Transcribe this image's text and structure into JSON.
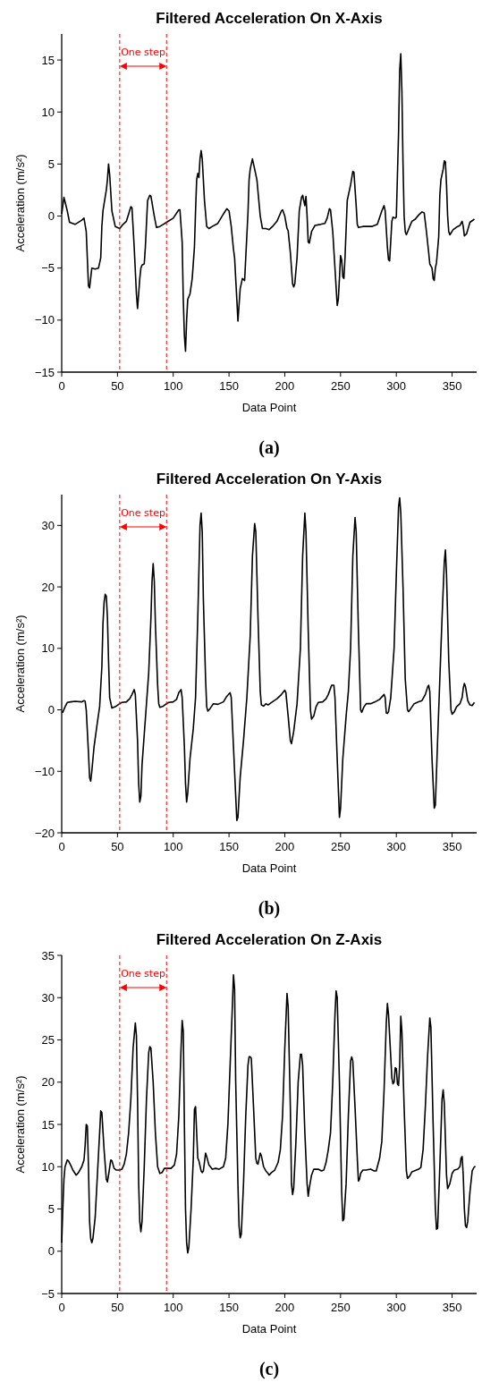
{
  "chart_data": [
    {
      "type": "line",
      "title": "Filtered Acceleration On X-Axis",
      "xlabel": "Data Point",
      "ylabel": "Acceleration (m/s²)",
      "xlim": [
        0,
        372
      ],
      "ylim": [
        -15,
        17.5
      ],
      "xticks": [
        0,
        50,
        100,
        150,
        200,
        250,
        300,
        350
      ],
      "yticks": [
        -15,
        -10,
        -5,
        0,
        5,
        10,
        15
      ],
      "series": [
        {
          "color": "#000000",
          "x": [
            0,
            2,
            5,
            7,
            12,
            18,
            20,
            22,
            24,
            25,
            27,
            30,
            33,
            35,
            36,
            37,
            40,
            41,
            42,
            43,
            45,
            48,
            52,
            55,
            58,
            60,
            62,
            63,
            65,
            67,
            68,
            70,
            71,
            72,
            74,
            75,
            77,
            79,
            80,
            83,
            85,
            88,
            91,
            94,
            100,
            105,
            106,
            108,
            109,
            110,
            111,
            112,
            113,
            115,
            117,
            119,
            120,
            121,
            122,
            123,
            124,
            125,
            126,
            128,
            130,
            132,
            135,
            140,
            145,
            148,
            150,
            152,
            154,
            155,
            157,
            158,
            160,
            162,
            164,
            165,
            167,
            168,
            169,
            171,
            173,
            175,
            178,
            180,
            183,
            186,
            189,
            193,
            197,
            198,
            200,
            202,
            203,
            205,
            207,
            208,
            209,
            211,
            213,
            215,
            216,
            218,
            219,
            220,
            221,
            222,
            224,
            227,
            232,
            236,
            238,
            240,
            241,
            243,
            245,
            247,
            248,
            249,
            250,
            251,
            252,
            253,
            254,
            256,
            259,
            261,
            262,
            264,
            265,
            266,
            270,
            278,
            283,
            287,
            289,
            290,
            292,
            293,
            294,
            296,
            297,
            299,
            300,
            302,
            303,
            304,
            305,
            306,
            307,
            308,
            309,
            312,
            314,
            317,
            320,
            323,
            325,
            327,
            329,
            330,
            332,
            333,
            334,
            335,
            336,
            338,
            339,
            340,
            342,
            343,
            344,
            345,
            346,
            347,
            348,
            351,
            355,
            357,
            358,
            359,
            360,
            361,
            363,
            366,
            370
          ],
          "values": [
            0.2,
            1.8,
            0.5,
            -0.6,
            -0.8,
            -0.4,
            -0.2,
            -1.5,
            -6.7,
            -6.9,
            -5,
            -5.1,
            -5,
            -4,
            -1,
            0.5,
            2.5,
            3.5,
            5,
            4,
            0.5,
            -1,
            -1.2,
            -0.8,
            -0.5,
            0.2,
            0.9,
            0.8,
            -3,
            -7.5,
            -8.9,
            -6,
            -5,
            -4.7,
            -4.6,
            -3,
            1.5,
            2,
            1.9,
            0,
            -1.1,
            -1,
            -0.8,
            -0.6,
            -0.2,
            0.6,
            0.6,
            -2.5,
            -8,
            -11.5,
            -13,
            -10,
            -8,
            -7.5,
            -6,
            -3,
            0.5,
            3.5,
            4.1,
            3.7,
            5.5,
            6.3,
            5.5,
            1.5,
            -1,
            -1.2,
            -1,
            -0.7,
            0.2,
            0.7,
            0.5,
            -1,
            -3.2,
            -4,
            -8,
            -10.1,
            -7,
            -6,
            -6.2,
            -4,
            0.3,
            3.5,
            4.5,
            5.5,
            4.5,
            3.5,
            0,
            -1.2,
            -1.2,
            -1.3,
            -1,
            -0.5,
            0.5,
            0.6,
            0,
            -1.2,
            -1.4,
            -3.5,
            -6.5,
            -6.8,
            -6.5,
            -4,
            0.5,
            1.8,
            2,
            1,
            1.9,
            0,
            -2.5,
            -2.6,
            -1.5,
            -0.9,
            -0.8,
            -0.7,
            -0.2,
            0.7,
            0.6,
            -1.5,
            -5,
            -8.6,
            -8,
            -6,
            -3.8,
            -4.2,
            -5.8,
            -6,
            -4,
            1.5,
            3,
            4.3,
            4.2,
            1,
            -0.8,
            -1.1,
            -1,
            -1,
            -0.8,
            0.5,
            1,
            0.5,
            -3,
            -4.2,
            -4.3,
            -0.5,
            -0.1,
            -0.2,
            -0.1,
            8,
            14,
            15.6,
            12,
            5,
            0,
            -1.5,
            -1.8,
            -1,
            -0.5,
            -0.3,
            0.1,
            0.4,
            0.3,
            -1.5,
            -3.5,
            -4.6,
            -5,
            -6,
            -6.2,
            -5,
            -4.5,
            -2,
            2,
            3.5,
            4.5,
            5.3,
            5.2,
            3,
            0,
            -1.5,
            -1.8,
            -1.3,
            -1,
            -0.9,
            -0.7,
            -0.5,
            -1,
            -1.9,
            -1.7,
            -0.6,
            -0.3
          ]
        }
      ],
      "ref_lines": [
        {
          "axis": "x",
          "value": 52,
          "color": "#ff0000",
          "line_style": "dashed"
        },
        {
          "axis": "x",
          "value": 94,
          "color": "#ff0000",
          "line_style": "dashed"
        }
      ],
      "annotations": [
        "One step",
        "(a)"
      ]
    },
    {
      "type": "line",
      "title": "Filtered Acceleration On Y-Axis",
      "xlabel": "Data Point",
      "ylabel": "Acceleration (m/s²)",
      "xlim": [
        0,
        372
      ],
      "ylim": [
        -20,
        35
      ],
      "xticks": [
        0,
        50,
        100,
        150,
        200,
        250,
        300,
        350
      ],
      "yticks": [
        -20,
        -10,
        0,
        10,
        20,
        30
      ],
      "series": [
        {
          "color": "#000000",
          "x": [
            0,
            1,
            3,
            5,
            8,
            12,
            18,
            20,
            21,
            22,
            24,
            25,
            26,
            27,
            29,
            32,
            34,
            36,
            37,
            38,
            39,
            40,
            41,
            42,
            43,
            45,
            48,
            52,
            54,
            58,
            61,
            63,
            65,
            66,
            68,
            69,
            70,
            71,
            72,
            74,
            76,
            78,
            80,
            81,
            82,
            83,
            84,
            86,
            87,
            88,
            91,
            94,
            96,
            100,
            103,
            105,
            107,
            108,
            110,
            111,
            112,
            113,
            115,
            118,
            120,
            122,
            124,
            125,
            126,
            127,
            129,
            130,
            131,
            133,
            136,
            140,
            145,
            148,
            151,
            152,
            154,
            156,
            157,
            158,
            160,
            163,
            166,
            169,
            171,
            173,
            174,
            176,
            178,
            179,
            181,
            183,
            185,
            188,
            193,
            197,
            200,
            201,
            203,
            205,
            206,
            208,
            211,
            214,
            216,
            218,
            219,
            221,
            223,
            224,
            226,
            228,
            230,
            234,
            237,
            239,
            242,
            244,
            245,
            247,
            249,
            250,
            252,
            255,
            257,
            259,
            261,
            263,
            264,
            266,
            268,
            269,
            271,
            273,
            277,
            281,
            285,
            289,
            290,
            291,
            292,
            293,
            295,
            298,
            300,
            302,
            303,
            304,
            306,
            308,
            310,
            311,
            313,
            316,
            320,
            323,
            326,
            328,
            329,
            330,
            332,
            334,
            335,
            337,
            339,
            341,
            343,
            344,
            345,
            347,
            349,
            350,
            352,
            354,
            357,
            359,
            360,
            361,
            362,
            364,
            366,
            368,
            370
          ],
          "values": [
            -0.3,
            -0.4,
            0.5,
            1.2,
            1.3,
            1.4,
            1.3,
            1.5,
            1.4,
            0,
            -7,
            -11,
            -11.6,
            -10,
            -6,
            -2,
            0.5,
            7,
            14,
            17.5,
            18.8,
            18.5,
            15,
            8,
            2,
            0.3,
            0.5,
            1,
            1.2,
            1.3,
            1.8,
            2.5,
            3.3,
            2.5,
            -5,
            -12,
            -15,
            -14,
            -9,
            -4,
            1,
            6,
            15,
            21,
            23.8,
            21,
            14,
            4,
            1,
            0.4,
            0.6,
            1,
            1.2,
            1.3,
            1.7,
            2.8,
            3.3,
            2,
            -6,
            -12,
            -15,
            -13.5,
            -8,
            -3,
            2,
            15,
            30,
            32,
            29,
            18,
            5,
            0.5,
            -0.2,
            0.2,
            1,
            0.9,
            1.3,
            2.2,
            2.8,
            2,
            -6,
            -14,
            -18,
            -17.5,
            -11,
            -5,
            2,
            12,
            25,
            30.3,
            29,
            15,
            3,
            0.8,
            0.6,
            1,
            0.8,
            1.2,
            1.8,
            2.5,
            3.2,
            2.8,
            -1,
            -5,
            -5.5,
            -3.5,
            1,
            10,
            25,
            32,
            29,
            13,
            0,
            -1.5,
            -1,
            0.5,
            1.2,
            1.3,
            1.8,
            2.5,
            4,
            4,
            2,
            -8,
            -17.5,
            -16,
            -8,
            -1,
            3,
            10,
            25,
            31.3,
            29,
            13,
            0,
            -0.4,
            0.5,
            1,
            1,
            1.3,
            1.7,
            2.5,
            2,
            -0.5,
            -0.6,
            -0.3,
            2,
            10,
            22,
            33,
            34.5,
            32,
            20,
            5,
            0,
            -0.3,
            0.2,
            1,
            1.3,
            1.5,
            2.5,
            3.7,
            4,
            3,
            -8,
            -16,
            -15.5,
            -5,
            5,
            15,
            24,
            26,
            22,
            8,
            0,
            -0.7,
            -0.3,
            0.5,
            1,
            2,
            3.5,
            4.3,
            3.8,
            1.5,
            0.8,
            0.7,
            1.2
          ]
        }
      ],
      "ref_lines": [
        {
          "axis": "x",
          "value": 52,
          "color": "#ff0000",
          "line_style": "dashed"
        },
        {
          "axis": "x",
          "value": 94,
          "color": "#ff0000",
          "line_style": "dashed"
        }
      ],
      "annotations": [
        "One step",
        "(b)"
      ]
    },
    {
      "type": "line",
      "title": "Filtered Acceleration On Z-Axis",
      "xlabel": "Data Point",
      "ylabel": "Acceleration (m/s²)",
      "xlim": [
        0,
        372
      ],
      "ylim": [
        -5,
        35
      ],
      "xticks": [
        0,
        50,
        100,
        150,
        200,
        250,
        300,
        350
      ],
      "yticks": [
        -5,
        0,
        5,
        10,
        15,
        20,
        25,
        30,
        35
      ],
      "series": [
        {
          "color": "#000000",
          "x": [
            0,
            1,
            2,
            3,
            5,
            6,
            8,
            10,
            13,
            15,
            18,
            20,
            21,
            22,
            23,
            24,
            25,
            26,
            27,
            28,
            30,
            32,
            34,
            35,
            36,
            38,
            40,
            41,
            42,
            44,
            45,
            47,
            49,
            52,
            54,
            56,
            58,
            60,
            62,
            64,
            66,
            67,
            68,
            69,
            70,
            71,
            72,
            74,
            76,
            78,
            79,
            80,
            82,
            84,
            86,
            88,
            90,
            92,
            95,
            98,
            101,
            103,
            105,
            107,
            108,
            109,
            110,
            111,
            112,
            113,
            114,
            116,
            118,
            119,
            120,
            121,
            122,
            123,
            125,
            126,
            127,
            129,
            130,
            132,
            135,
            138,
            141,
            145,
            147,
            149,
            151,
            153,
            154,
            155,
            156,
            158,
            159,
            160,
            161,
            163,
            165,
            167,
            168,
            169,
            170,
            172,
            174,
            175,
            176,
            178,
            179,
            181,
            183,
            185,
            186,
            188,
            191,
            194,
            196,
            198,
            200,
            202,
            203,
            205,
            206,
            207,
            208,
            210,
            212,
            214,
            215,
            216,
            218,
            220,
            221,
            222,
            224,
            226,
            230,
            233,
            235,
            237,
            239,
            241,
            243,
            245,
            246,
            247,
            249,
            251,
            252,
            253,
            255,
            257,
            259,
            260,
            261,
            263,
            265,
            266,
            267,
            268,
            270,
            273,
            277,
            280,
            282,
            285,
            287,
            289,
            291,
            292,
            293,
            295,
            296,
            297,
            298,
            299,
            300,
            301,
            302,
            303,
            304,
            305,
            307,
            309,
            310,
            312,
            314,
            318,
            320,
            322,
            324,
            326,
            328,
            330,
            331,
            333,
            335,
            336,
            337,
            339,
            341,
            342,
            343,
            345,
            346,
            348,
            350,
            352,
            355,
            357,
            358,
            359,
            360,
            361,
            362,
            363,
            364,
            366,
            368,
            370,
            371
          ],
          "values": [
            1,
            5,
            8.5,
            10,
            10.8,
            10.7,
            10.2,
            9.6,
            9,
            9.3,
            10,
            10.8,
            12.5,
            15,
            14.8,
            10,
            3.5,
            1.5,
            1,
            1.5,
            4,
            9,
            14,
            16.6,
            16.4,
            12,
            8.5,
            8.2,
            9,
            10.8,
            10.7,
            9.8,
            9.6,
            9.6,
            9.7,
            10.3,
            11.5,
            14,
            18,
            24,
            27,
            25.5,
            18,
            8,
            3.5,
            2.3,
            3.5,
            10,
            18,
            23.5,
            24.2,
            24,
            20,
            14,
            10,
            9.2,
            9.3,
            9.8,
            9.8,
            9.8,
            10.2,
            11.5,
            16,
            24,
            27.3,
            26,
            15,
            5,
            1,
            -0.2,
            0.5,
            5,
            11,
            16.8,
            17.1,
            14,
            11,
            10.7,
            9.5,
            9.3,
            9.5,
            11.6,
            11.2,
            10.2,
            9.7,
            9.8,
            9.7,
            10,
            11,
            15,
            22,
            29,
            32.7,
            31,
            20,
            8,
            3,
            1.6,
            2,
            8,
            16,
            22,
            23,
            23,
            22.8,
            17,
            11,
            10.4,
            10.3,
            11.6,
            11.3,
            10,
            9.5,
            9.2,
            9,
            9.3,
            9.6,
            10.5,
            12,
            16,
            24,
            30.5,
            29,
            17,
            8,
            6.7,
            7.5,
            13,
            20,
            23.3,
            23.3,
            22,
            14,
            8,
            6.5,
            7.5,
            9,
            9.7,
            9.7,
            9.5,
            9.6,
            10.5,
            12,
            14,
            20,
            28,
            30.8,
            30,
            20,
            7,
            3.6,
            3.8,
            8,
            16,
            22.5,
            23,
            22.5,
            17,
            11,
            8.3,
            8.5,
            9.2,
            9.6,
            9.6,
            9.7,
            9.5,
            9.5,
            11,
            13,
            19,
            27,
            29.3,
            28,
            23,
            20.5,
            19.8,
            20,
            21.7,
            21.6,
            19.8,
            19.6,
            22,
            27.8,
            26,
            17,
            9.5,
            8.6,
            8.9,
            9.4,
            9.6,
            9.7,
            9.9,
            12,
            17,
            23,
            27.6,
            26.5,
            15,
            5,
            2.6,
            2.7,
            10,
            18,
            19.1,
            17.5,
            9,
            7.4,
            8,
            9.2,
            9.6,
            9.7,
            10,
            11,
            11.2,
            9,
            5,
            3,
            2.8,
            3.5,
            7,
            9.5,
            10,
            10
          ]
        }
      ],
      "ref_lines": [
        {
          "axis": "x",
          "value": 52,
          "color": "#ff0000",
          "line_style": "dashed"
        },
        {
          "axis": "x",
          "value": 94,
          "color": "#ff0000",
          "line_style": "dashed"
        }
      ],
      "annotations": [
        "One step",
        "(c)"
      ]
    }
  ]
}
